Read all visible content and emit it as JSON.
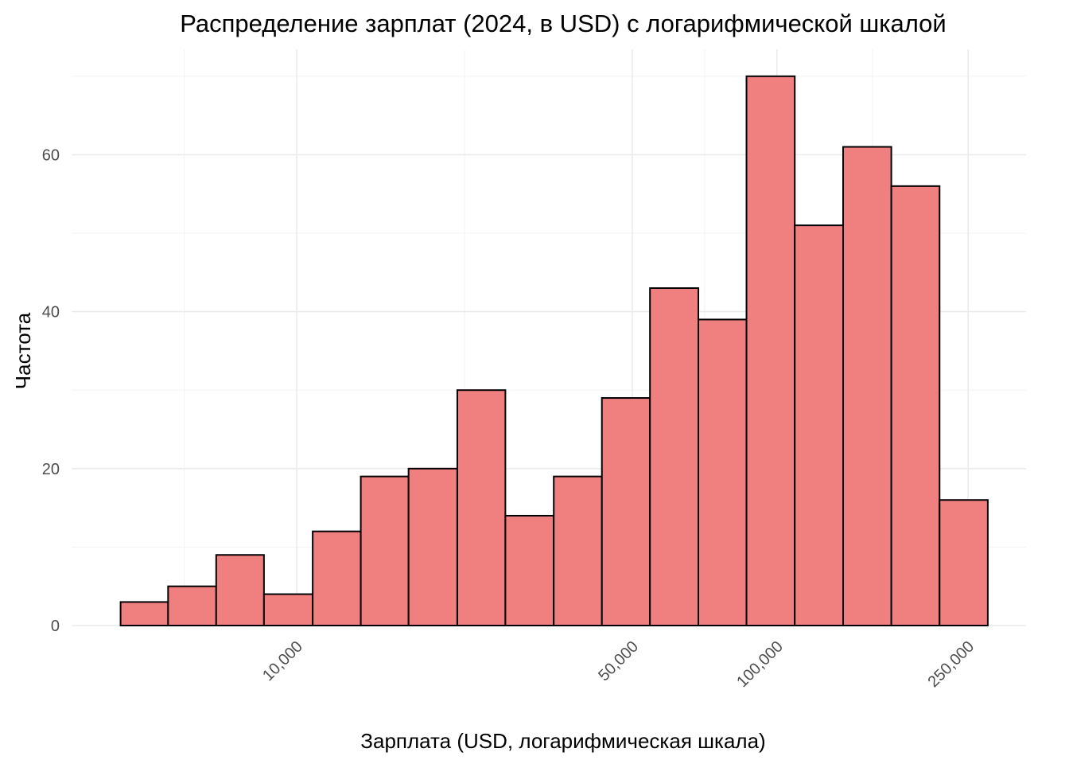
{
  "chart_data": {
    "type": "bar",
    "title": "Распределение зарплат (2024, в USD) с логарифмической шкалой",
    "xlabel": "Зарплата (USD, логарифмическая шкала)",
    "ylabel": "Частота",
    "x_scale": "log10",
    "grid": true,
    "xlim": [
      3400,
      330000
    ],
    "ylim": [
      0,
      72
    ],
    "x_ticks": [
      10000,
      50000,
      100000,
      250000
    ],
    "x_tick_labels": [
      "10,000",
      "50,000",
      "100,000",
      "250,000"
    ],
    "y_ticks": [
      0,
      20,
      40,
      60
    ],
    "y_tick_labels": [
      "0",
      "20",
      "40",
      "60"
    ],
    "bin_edges": [
      4300,
      5400,
      6800,
      8550,
      10800,
      13600,
      17100,
      21600,
      27200,
      34300,
      43200,
      54400,
      68600,
      86400,
      108900,
      137300,
      173000,
      218000,
      274700
    ],
    "values": [
      3,
      5,
      9,
      4,
      12,
      19,
      20,
      30,
      14,
      19,
      29,
      43,
      39,
      70,
      51,
      61,
      56,
      16
    ],
    "bar_color": "#f08080",
    "bar_outline": "#000000"
  }
}
